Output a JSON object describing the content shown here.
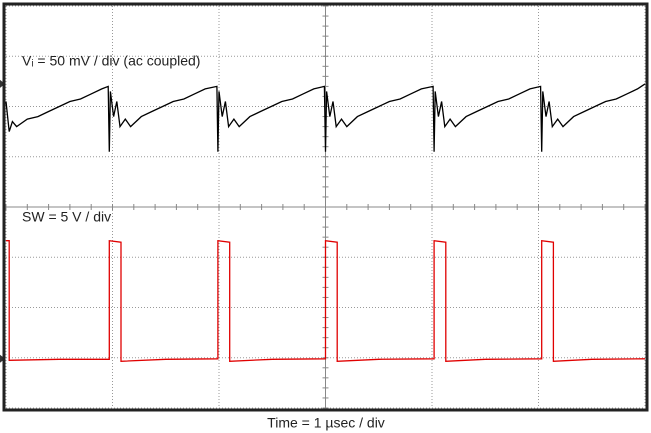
{
  "chart_data": {
    "type": "line",
    "xlabel": "Time = 1 µsec / div",
    "xlim": [
      0,
      6
    ],
    "ylim": [
      0,
      8
    ],
    "xticks": [
      0,
      1,
      2,
      3,
      4,
      5,
      6
    ],
    "yticks": [
      0,
      1,
      2,
      3,
      4,
      5,
      6,
      7,
      8
    ],
    "grid": true,
    "series": [
      {
        "name": "Vᵢ = 50 mV / div (ac coupled)",
        "color": "#000000",
        "x": [
          0,
          0.03,
          0.06,
          0.1,
          0.2,
          0.3,
          0.4,
          0.5,
          0.6,
          0.7,
          0.8,
          0.9,
          0.96,
          0.97,
          0.98,
          1.01,
          1.04,
          1.07,
          1.12,
          1.17,
          1.27,
          1.37,
          1.47,
          1.57,
          1.67,
          1.77,
          1.87,
          1.98,
          1.99,
          2.0,
          2.03,
          2.06,
          2.09,
          2.14,
          2.19,
          2.29,
          2.39,
          2.49,
          2.59,
          2.69,
          2.79,
          2.89,
          2.99,
          3.0,
          3.01,
          3.04,
          3.07,
          3.1,
          3.15,
          3.2,
          3.3,
          3.4,
          3.5,
          3.6,
          3.7,
          3.8,
          3.9,
          4.01,
          4.02,
          4.03,
          4.06,
          4.09,
          4.12,
          4.17,
          4.22,
          4.32,
          4.42,
          4.52,
          4.62,
          4.72,
          4.82,
          4.92,
          5.02,
          5.03,
          5.04,
          5.07,
          5.1,
          5.13,
          5.18,
          5.23,
          5.33,
          5.43,
          5.53,
          5.63,
          5.73,
          5.83,
          5.93,
          6.0
        ],
        "values": [
          6.1,
          5.5,
          5.7,
          5.6,
          5.75,
          5.8,
          5.9,
          6.0,
          6.1,
          6.15,
          6.25,
          6.35,
          6.4,
          5.1,
          6.3,
          5.8,
          6.1,
          5.6,
          5.75,
          5.6,
          5.8,
          5.9,
          6.0,
          6.1,
          6.15,
          6.25,
          6.35,
          6.4,
          5.1,
          6.3,
          5.8,
          6.1,
          5.6,
          5.75,
          5.6,
          5.8,
          5.9,
          6.0,
          6.1,
          6.15,
          6.25,
          6.35,
          6.4,
          5.1,
          6.3,
          5.8,
          6.1,
          5.6,
          5.75,
          5.6,
          5.8,
          5.9,
          6.0,
          6.1,
          6.15,
          6.25,
          6.35,
          6.4,
          5.1,
          6.3,
          5.8,
          6.1,
          5.6,
          5.75,
          5.6,
          5.8,
          5.9,
          6.0,
          6.1,
          6.15,
          6.25,
          6.35,
          6.4,
          5.1,
          6.3,
          5.8,
          6.1,
          5.6,
          5.75,
          5.6,
          5.8,
          5.9,
          6.0,
          6.1,
          6.15,
          6.25,
          6.35,
          6.45
        ]
      },
      {
        "name": "SW = 5 V / div",
        "color": "#e00000",
        "x": [
          0,
          0.03,
          0.03,
          0.5,
          0.97,
          0.97,
          1.08,
          1.08,
          1.5,
          1.99,
          1.99,
          2.1,
          2.1,
          2.5,
          3.0,
          3.0,
          3.11,
          3.11,
          3.5,
          4.02,
          4.02,
          4.13,
          4.13,
          4.5,
          5.03,
          5.03,
          5.14,
          5.14,
          5.5,
          6.0
        ],
        "values": [
          3.33,
          3.33,
          0.95,
          0.97,
          0.97,
          3.33,
          3.3,
          0.93,
          0.97,
          0.98,
          3.33,
          3.3,
          0.93,
          0.97,
          0.98,
          3.33,
          3.3,
          0.93,
          0.97,
          0.98,
          3.33,
          3.3,
          0.93,
          0.97,
          0.98,
          3.33,
          3.3,
          0.93,
          0.97,
          0.98
        ]
      }
    ]
  }
}
